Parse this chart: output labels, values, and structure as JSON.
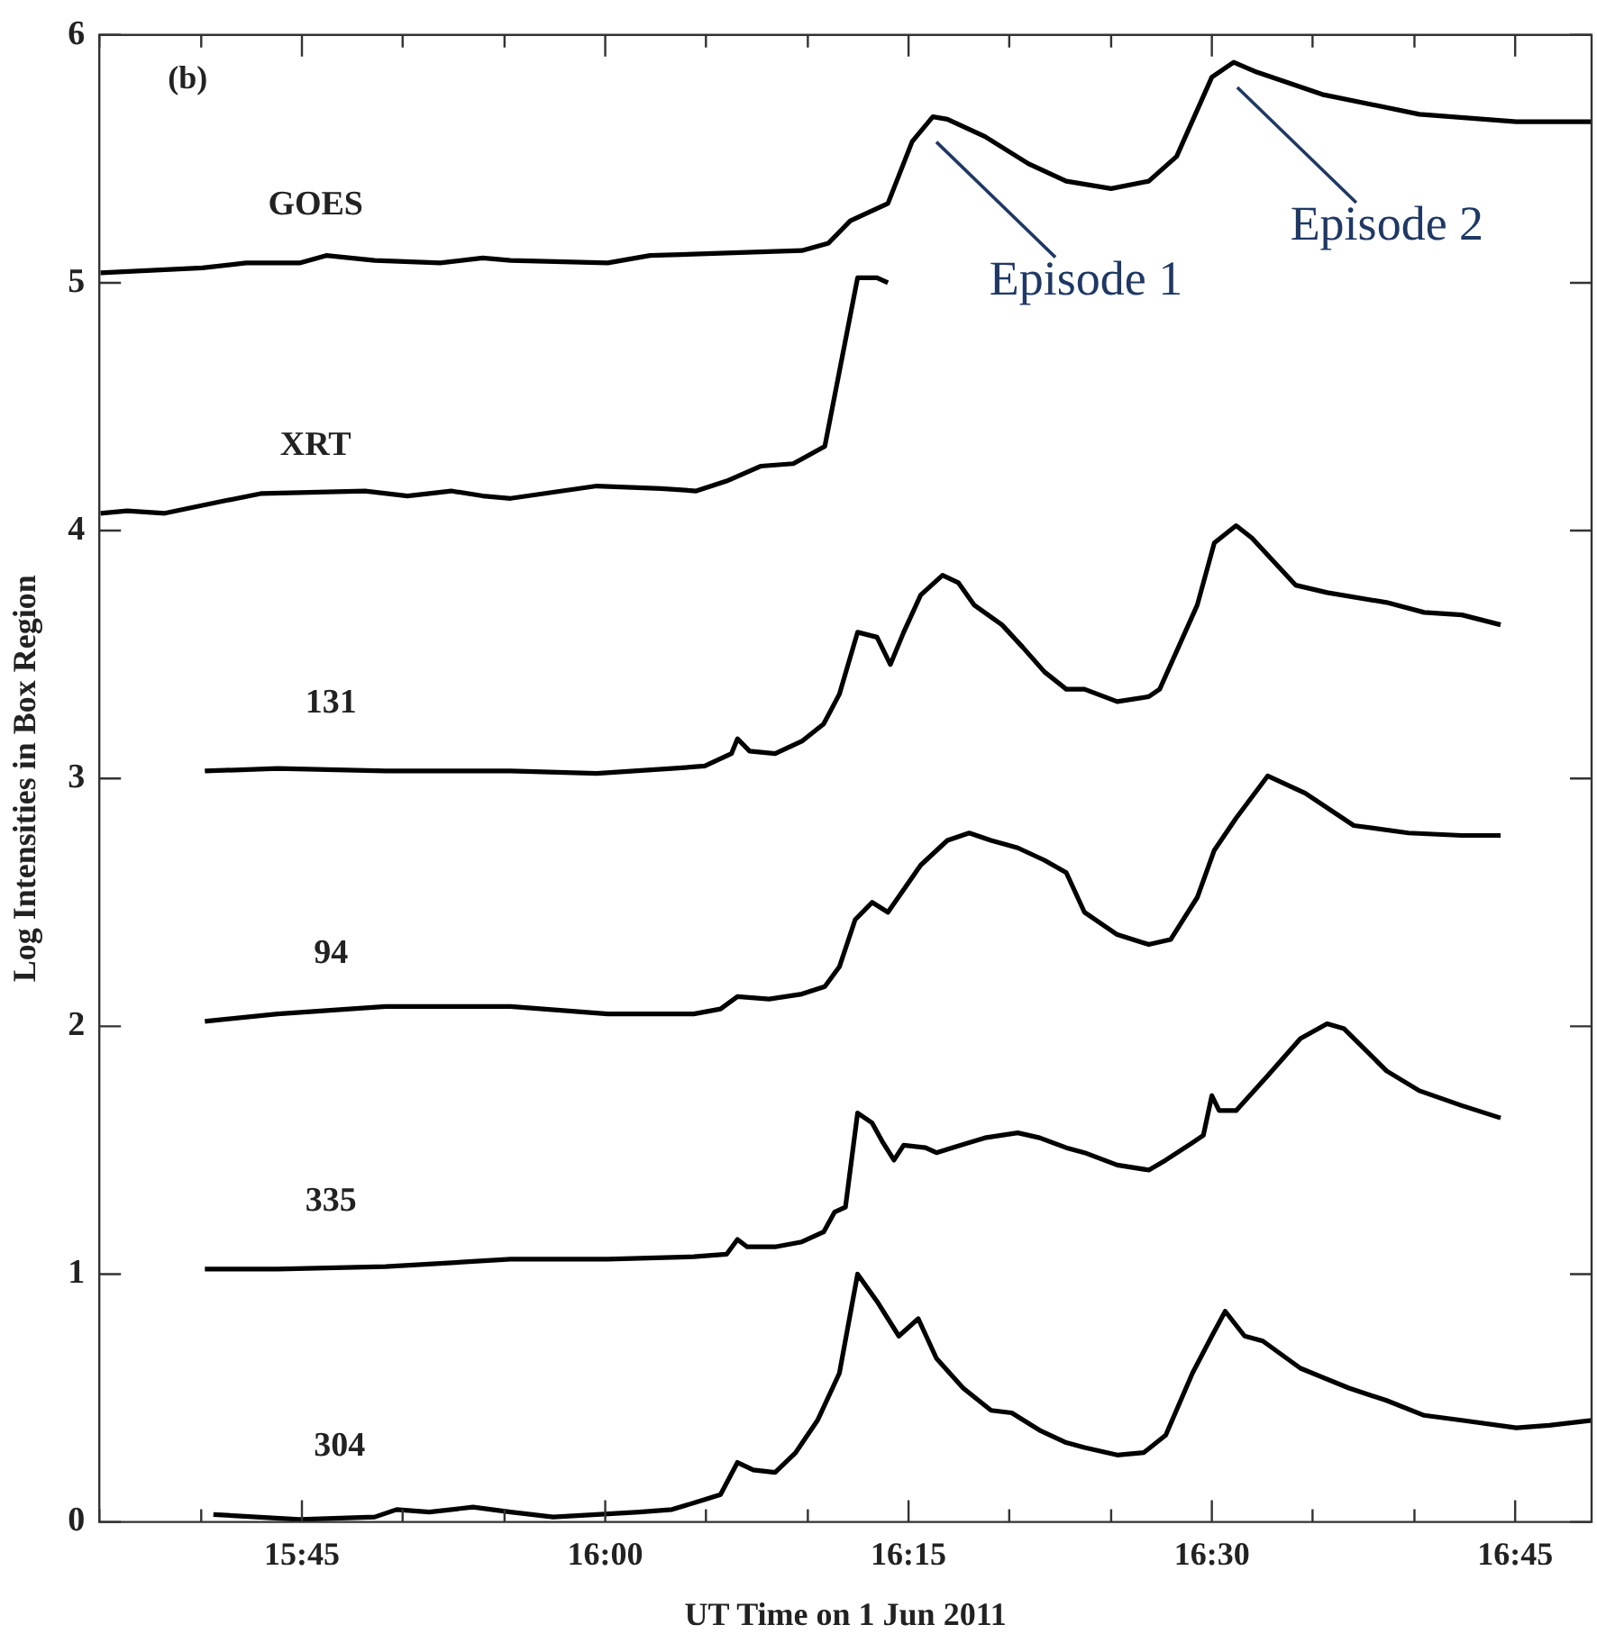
{
  "chart_data": {
    "type": "line",
    "xlabel": "UT Time on 1 Jun 2011",
    "ylabel": "Log Intensities in Box Region",
    "xlim": [
      15.583,
      16.813
    ],
    "ylim": [
      0,
      6
    ],
    "xticks": [
      {
        "value": 15.583,
        "label": null
      },
      {
        "value": 15.667,
        "label": null
      },
      {
        "value": 15.75,
        "label": "15:45"
      },
      {
        "value": 15.833,
        "label": null
      },
      {
        "value": 15.917,
        "label": null
      },
      {
        "value": 16,
        "label": "16:00"
      },
      {
        "value": 16.083,
        "label": null
      },
      {
        "value": 16.167,
        "label": null
      },
      {
        "value": 16.25,
        "label": "16:15"
      },
      {
        "value": 16.333,
        "label": null
      },
      {
        "value": 16.417,
        "label": null
      },
      {
        "value": 16.5,
        "label": "16:30"
      },
      {
        "value": 16.583,
        "label": null
      },
      {
        "value": 16.667,
        "label": null
      },
      {
        "value": 16.75,
        "label": "16:45"
      }
    ],
    "yticks": [
      0,
      1,
      2,
      3,
      4,
      5,
      6
    ],
    "grid": false,
    "legend": false,
    "marker": "none",
    "line_style": "solid",
    "annotations": [
      "(b)",
      {
        "text": "Episode 1",
        "x": 16.27,
        "y": 5.67
      },
      {
        "text": "Episode 2",
        "x": 16.518,
        "y": 5.89
      }
    ],
    "series": [
      {
        "name": "GOES",
        "color": "#000000",
        "x": [
          15.584,
          15.668,
          15.704,
          15.748,
          15.77,
          15.81,
          15.864,
          15.899,
          15.922,
          16.002,
          16.037,
          16.1,
          16.162,
          16.184,
          16.202,
          16.233,
          16.253,
          16.27,
          16.282,
          16.313,
          16.349,
          16.38,
          16.417,
          16.448,
          16.471,
          16.5,
          16.518,
          16.537,
          16.591,
          16.671,
          16.751,
          16.813
        ],
        "values": [
          5.04,
          5.06,
          5.08,
          5.08,
          5.11,
          5.09,
          5.08,
          5.1,
          5.09,
          5.08,
          5.11,
          5.12,
          5.13,
          5.16,
          5.25,
          5.32,
          5.57,
          5.67,
          5.66,
          5.59,
          5.48,
          5.41,
          5.38,
          5.41,
          5.51,
          5.83,
          5.89,
          5.85,
          5.76,
          5.68,
          5.65,
          5.65
        ]
      },
      {
        "name": "XRT",
        "color": "#000000",
        "x": [
          15.584,
          15.606,
          15.637,
          15.686,
          15.717,
          15.802,
          15.837,
          15.873,
          15.899,
          15.922,
          15.993,
          16.046,
          16.075,
          16.1,
          16.128,
          16.155,
          16.181,
          16.208,
          16.224,
          16.233
        ],
        "values": [
          4.07,
          4.08,
          4.07,
          4.12,
          4.15,
          4.16,
          4.14,
          4.16,
          4.14,
          4.13,
          4.18,
          4.17,
          4.16,
          4.2,
          4.26,
          4.27,
          4.34,
          5.02,
          5.02,
          5
        ]
      },
      {
        "name": "131",
        "color": "#000000",
        "x": [
          15.67,
          15.73,
          15.819,
          15.922,
          15.993,
          16.055,
          16.082,
          16.104,
          16.109,
          16.119,
          16.14,
          16.162,
          16.18,
          16.193,
          16.208,
          16.224,
          16.235,
          16.246,
          16.26,
          16.278,
          16.291,
          16.304,
          16.327,
          16.344,
          16.362,
          16.38,
          16.395,
          16.422,
          16.448,
          16.457,
          16.488,
          16.502,
          16.52,
          16.533,
          16.569,
          16.595,
          16.644,
          16.675,
          16.706,
          16.738
        ],
        "values": [
          3.03,
          3.04,
          3.03,
          3.03,
          3.02,
          3.04,
          3.05,
          3.1,
          3.16,
          3.11,
          3.1,
          3.15,
          3.22,
          3.34,
          3.59,
          3.57,
          3.46,
          3.59,
          3.74,
          3.82,
          3.79,
          3.7,
          3.62,
          3.53,
          3.43,
          3.36,
          3.36,
          3.31,
          3.33,
          3.36,
          3.7,
          3.95,
          4.02,
          3.97,
          3.78,
          3.75,
          3.71,
          3.67,
          3.66,
          3.62
        ]
      },
      {
        "name": "94",
        "color": "#000000",
        "x": [
          15.67,
          15.73,
          15.819,
          15.922,
          16.002,
          16.073,
          16.095,
          16.109,
          16.135,
          16.162,
          16.181,
          16.193,
          16.206,
          16.22,
          16.233,
          16.26,
          16.282,
          16.3,
          16.318,
          16.34,
          16.362,
          16.38,
          16.395,
          16.422,
          16.448,
          16.466,
          16.488,
          16.502,
          16.52,
          16.546,
          16.577,
          16.617,
          16.662,
          16.706,
          16.738
        ],
        "values": [
          2.02,
          2.05,
          2.08,
          2.08,
          2.05,
          2.05,
          2.07,
          2.12,
          2.11,
          2.13,
          2.16,
          2.24,
          2.43,
          2.5,
          2.46,
          2.65,
          2.75,
          2.78,
          2.75,
          2.72,
          2.67,
          2.62,
          2.46,
          2.37,
          2.33,
          2.35,
          2.52,
          2.71,
          2.84,
          3.01,
          2.94,
          2.81,
          2.78,
          2.77,
          2.77
        ]
      },
      {
        "name": "335",
        "color": "#000000",
        "x": [
          15.67,
          15.73,
          15.819,
          15.922,
          16.002,
          16.073,
          16.1,
          16.109,
          16.117,
          16.14,
          16.162,
          16.18,
          16.189,
          16.198,
          16.208,
          16.22,
          16.229,
          16.238,
          16.246,
          16.264,
          16.273,
          16.286,
          16.313,
          16.34,
          16.358,
          16.38,
          16.395,
          16.422,
          16.448,
          16.462,
          16.484,
          16.493,
          16.5,
          16.506,
          16.52,
          16.546,
          16.573,
          16.595,
          16.609,
          16.644,
          16.671,
          16.706,
          16.738
        ],
        "values": [
          1.02,
          1.02,
          1.03,
          1.06,
          1.06,
          1.07,
          1.08,
          1.14,
          1.11,
          1.11,
          1.13,
          1.17,
          1.25,
          1.27,
          1.65,
          1.61,
          1.53,
          1.46,
          1.52,
          1.51,
          1.49,
          1.51,
          1.55,
          1.57,
          1.55,
          1.51,
          1.49,
          1.44,
          1.42,
          1.46,
          1.53,
          1.56,
          1.72,
          1.66,
          1.66,
          1.8,
          1.95,
          2.01,
          1.99,
          1.82,
          1.74,
          1.68,
          1.63
        ]
      },
      {
        "name": "304",
        "color": "#000000",
        "x": [
          15.677,
          15.748,
          15.81,
          15.828,
          15.855,
          15.891,
          15.922,
          15.957,
          15.993,
          16.028,
          16.055,
          16.082,
          16.095,
          16.109,
          16.122,
          16.14,
          16.157,
          16.175,
          16.193,
          16.208,
          16.224,
          16.242,
          16.258,
          16.273,
          16.295,
          16.318,
          16.335,
          16.358,
          16.38,
          16.395,
          16.422,
          16.444,
          16.462,
          16.484,
          16.5,
          16.511,
          16.527,
          16.542,
          16.573,
          16.613,
          16.644,
          16.675,
          16.706,
          16.751,
          16.778,
          16.813
        ],
        "values": [
          0.03,
          0.01,
          0.02,
          0.05,
          0.04,
          0.06,
          0.04,
          0.02,
          0.03,
          0.04,
          0.05,
          0.09,
          0.11,
          0.24,
          0.21,
          0.2,
          0.28,
          0.41,
          0.6,
          1,
          0.89,
          0.75,
          0.82,
          0.66,
          0.54,
          0.45,
          0.44,
          0.37,
          0.32,
          0.3,
          0.27,
          0.28,
          0.35,
          0.6,
          0.75,
          0.85,
          0.75,
          0.73,
          0.62,
          0.54,
          0.49,
          0.43,
          0.41,
          0.38,
          0.39,
          0.41
        ]
      }
    ]
  }
}
